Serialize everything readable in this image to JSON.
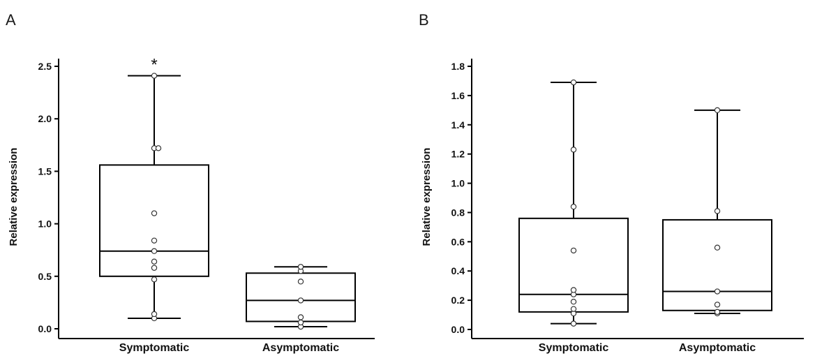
{
  "chart_data": [
    {
      "type": "box",
      "panel": "A",
      "ylabel": "Relative expression",
      "ylim": [
        0,
        2.5
      ],
      "yticks": [
        "0.0",
        "0.5",
        "1.0",
        "1.5",
        "2.0",
        "2.5"
      ],
      "categories": [
        "Symptomatic",
        "Asymptomatic"
      ],
      "boxes": [
        {
          "category": "Symptomatic",
          "whisker_low": 0.1,
          "q1": 0.5,
          "median": 0.74,
          "q3": 1.56,
          "whisker_high": 2.41,
          "points": [
            0.1,
            0.14,
            0.47,
            0.58,
            0.64,
            0.74,
            0.84,
            1.1,
            1.72,
            1.72,
            2.41
          ],
          "annotation": "*"
        },
        {
          "category": "Asymptomatic",
          "whisker_low": 0.02,
          "q1": 0.07,
          "median": 0.27,
          "q3": 0.53,
          "whisker_high": 0.59,
          "points": [
            0.02,
            0.06,
            0.11,
            0.27,
            0.45,
            0.55,
            0.59
          ],
          "annotation": ""
        }
      ]
    },
    {
      "type": "box",
      "panel": "B",
      "ylabel": "Relative expression",
      "ylim": [
        0,
        1.8
      ],
      "yticks": [
        "0.0",
        "0.2",
        "0.4",
        "0.6",
        "0.8",
        "1.0",
        "1.2",
        "1.4",
        "1.6",
        "1.8"
      ],
      "categories": [
        "Symptomatic",
        "Asymptomatic"
      ],
      "boxes": [
        {
          "category": "Symptomatic",
          "whisker_low": 0.04,
          "q1": 0.12,
          "median": 0.24,
          "q3": 0.76,
          "whisker_high": 1.69,
          "points": [
            0.04,
            0.11,
            0.14,
            0.19,
            0.24,
            0.27,
            0.54,
            0.84,
            1.23,
            1.69
          ],
          "annotation": ""
        },
        {
          "category": "Asymptomatic",
          "whisker_low": 0.11,
          "q1": 0.13,
          "median": 0.26,
          "q3": 0.75,
          "whisker_high": 1.5,
          "points": [
            0.11,
            0.12,
            0.17,
            0.26,
            0.56,
            0.81,
            1.5
          ],
          "annotation": ""
        }
      ]
    }
  ]
}
